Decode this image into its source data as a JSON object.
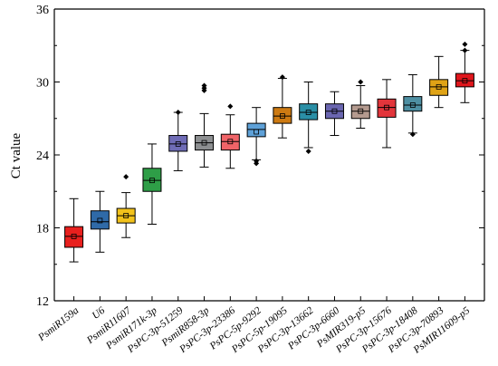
{
  "chart_data": {
    "type": "box",
    "ylabel": "Ct value",
    "xlabel": "",
    "ylim": [
      12,
      36
    ],
    "yticks": [
      12,
      18,
      24,
      30,
      36
    ],
    "grid": false,
    "categories": [
      "PsmiR159a",
      "U6",
      "PsmiR11607",
      "PsmiR171k-3p",
      "PsPC-3p-51259",
      "PsmiR858-3p",
      "PsPC-3p-23386",
      "PsPC-5p-9292",
      "PsPC-5p-19095",
      "PsPC-3p-13662",
      "PsPC-3p-6660",
      "PsMIR319-p5",
      "PsPC-3p-15676",
      "PsPC-3p-18408",
      "PsPC-3p-70893",
      "PsMIR11609-p5"
    ],
    "boxes": [
      {
        "color": "#e8201e",
        "min": 15.2,
        "q1": 16.4,
        "median": 17.3,
        "mean": 17.3,
        "q3": 18.1,
        "max": 20.4,
        "outliers": []
      },
      {
        "color": "#2f6aa8",
        "min": 16.0,
        "q1": 17.9,
        "median": 18.5,
        "mean": 18.6,
        "q3": 19.4,
        "max": 21.0,
        "outliers": []
      },
      {
        "color": "#f2c21b",
        "min": 17.2,
        "q1": 18.4,
        "median": 19.0,
        "mean": 19.0,
        "q3": 19.6,
        "max": 20.9,
        "outliers": [
          22.2
        ]
      },
      {
        "color": "#2e9e47",
        "min": 18.3,
        "q1": 21.0,
        "median": 21.9,
        "mean": 21.9,
        "q3": 22.9,
        "max": 24.9,
        "outliers": []
      },
      {
        "color": "#6f6cb6",
        "min": 22.7,
        "q1": 24.3,
        "median": 24.9,
        "mean": 24.9,
        "q3": 25.6,
        "max": 27.5,
        "outliers": [
          27.5
        ]
      },
      {
        "color": "#8d8f91",
        "min": 23.0,
        "q1": 24.4,
        "median": 25.0,
        "mean": 25.0,
        "q3": 25.6,
        "max": 27.4,
        "outliers": [
          29.3,
          29.5,
          29.7
        ]
      },
      {
        "color": "#f06468",
        "min": 22.9,
        "q1": 24.4,
        "median": 25.1,
        "mean": 25.1,
        "q3": 25.7,
        "max": 27.3,
        "outliers": [
          28.0
        ]
      },
      {
        "color": "#5ea1d8",
        "min": 23.6,
        "q1": 25.5,
        "median": 26.1,
        "mean": 25.9,
        "q3": 26.6,
        "max": 27.9,
        "outliers": [
          23.3,
          23.5
        ]
      },
      {
        "color": "#cd7a12",
        "min": 25.4,
        "q1": 26.6,
        "median": 27.2,
        "mean": 27.2,
        "q3": 27.9,
        "max": 30.3,
        "outliers": [
          30.4
        ]
      },
      {
        "color": "#2a8fa6",
        "min": 24.6,
        "q1": 26.9,
        "median": 27.5,
        "mean": 27.5,
        "q3": 28.2,
        "max": 30.0,
        "outliers": [
          24.3
        ]
      },
      {
        "color": "#6a66b0",
        "min": 25.6,
        "q1": 27.0,
        "median": 27.6,
        "mean": 27.6,
        "q3": 28.2,
        "max": 29.2,
        "outliers": []
      },
      {
        "color": "#b49a8f",
        "min": 26.2,
        "q1": 27.0,
        "median": 27.6,
        "mean": 27.6,
        "q3": 28.1,
        "max": 29.7,
        "outliers": [
          30.0
        ]
      },
      {
        "color": "#e2353b",
        "min": 24.6,
        "q1": 27.1,
        "median": 27.9,
        "mean": 27.9,
        "q3": 28.6,
        "max": 30.2,
        "outliers": []
      },
      {
        "color": "#4e8fa2",
        "min": 25.8,
        "q1": 27.6,
        "median": 28.1,
        "mean": 28.1,
        "q3": 28.8,
        "max": 30.6,
        "outliers": [
          25.7
        ]
      },
      {
        "color": "#dfa316",
        "min": 27.9,
        "q1": 28.9,
        "median": 29.6,
        "mean": 29.6,
        "q3": 30.2,
        "max": 32.1,
        "outliers": []
      },
      {
        "color": "#e0161c",
        "min": 28.3,
        "q1": 29.6,
        "median": 30.1,
        "mean": 30.1,
        "q3": 30.7,
        "max": 32.6,
        "outliers": [
          32.6,
          33.1
        ]
      }
    ]
  }
}
